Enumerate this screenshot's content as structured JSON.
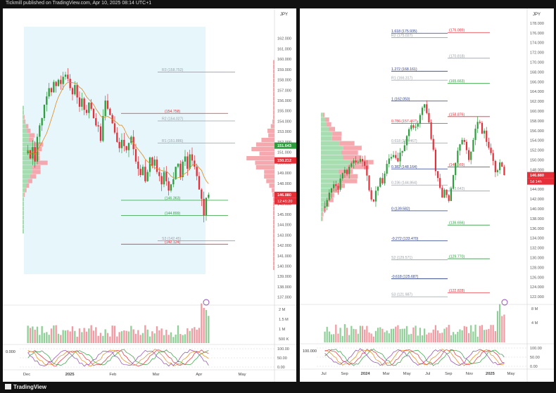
{
  "header": {
    "text": "Tickmill published on TradingView.com, Apr 10, 2025 08:14 UTC+1"
  },
  "footer": {
    "brand": "TradingView"
  },
  "colors": {
    "bull": "#2e9e3f",
    "bear": "#e5303a",
    "accent": "#8e44ad",
    "fib": "#2c3e91",
    "fill": "#e6f6fb"
  },
  "chart_data": [
    {
      "type": "candlestick",
      "currency": "JPY",
      "ylim": [
        136.5,
        163
      ],
      "y_ticks": [
        "162.000",
        "161.000",
        "160.000",
        "159.000",
        "158.000",
        "157.000",
        "156.000",
        "155.000",
        "154.000",
        "153.000",
        "152.000",
        "151.000",
        "150.000",
        "149.000",
        "148.000",
        "147.000",
        "146.000",
        "145.000",
        "144.000",
        "143.000",
        "142.000",
        "141.000",
        "140.000",
        "139.000",
        "138.000",
        "137.000"
      ],
      "x_ticks": [
        "Dec",
        "2025",
        "Feb",
        "Mar",
        "Apr",
        "May"
      ],
      "price_tags": {
        "green": "151.643",
        "red": "150.212",
        "last": "146.880",
        "countdown": "12:45:20"
      },
      "levels": [
        {
          "label": "R3 (158.752)",
          "value": 158.75,
          "color": "#9aa0a6"
        },
        {
          "label": "(154.758)",
          "value": 154.76,
          "color": "#e5303a"
        },
        {
          "label": "R2 (154.027)",
          "value": 154.03,
          "color": "#9aa0a6"
        },
        {
          "label": "R1 (151.886)",
          "value": 151.89,
          "color": "#9aa0a6"
        },
        {
          "label": "(146.363)",
          "value": 146.36,
          "color": "#2e9e3f"
        },
        {
          "label": "(144.899)",
          "value": 144.9,
          "color": "#2e9e3f"
        },
        {
          "label": "S3 (142.45)",
          "value": 142.45,
          "color": "#9aa0a6"
        },
        {
          "label": "(142.124)",
          "value": 142.12,
          "color": "#e5303a"
        }
      ],
      "volume_ticks": [
        "2 M",
        "1.5 M",
        "1 M",
        "500 K"
      ],
      "osc_ticks": [
        "100.00",
        "50.00",
        "0.00"
      ],
      "osc_left_label": "0.000",
      "closes": [
        151.2,
        150.4,
        151.5,
        150.1,
        152.5,
        153.6,
        154.3,
        155.6,
        156.4,
        157.2,
        156.8,
        157.8,
        157.4,
        158.0,
        157.6,
        158.3,
        158.5,
        158.1,
        157.2,
        156.6,
        157.5,
        156.3,
        155.4,
        156.2,
        155.1,
        154.8,
        155.8,
        155.2,
        154.3,
        153.6,
        153.5,
        152.1,
        154.5,
        156.0,
        155.2,
        154.6,
        153.8,
        152.9,
        152.0,
        151.4,
        152.2,
        151.6,
        151.2,
        151.9,
        152.5,
        151.3,
        150.1,
        149.4,
        148.8,
        149.6,
        148.2,
        149.1,
        150.5,
        149.7,
        150.3,
        149.1,
        148.7,
        147.9,
        149.1,
        148.2,
        147.3,
        147.9,
        148.4,
        149.6,
        149.9,
        148.6,
        150.1,
        150.6,
        149.4,
        150.8,
        150.2,
        149.6,
        148.7,
        147.4,
        146.5,
        144.9,
        146.6,
        146.9
      ]
    },
    {
      "type": "candlestick",
      "currency": "JPY",
      "ylim": [
        121,
        179
      ],
      "y_ticks": [
        "178.000",
        "176.000",
        "174.000",
        "172.000",
        "170.000",
        "168.000",
        "166.000",
        "164.000",
        "162.000",
        "160.000",
        "158.000",
        "156.000",
        "154.000",
        "152.000",
        "150.000",
        "148.000",
        "146.000",
        "144.000",
        "142.000",
        "140.000",
        "138.000",
        "136.000",
        "134.000",
        "132.000",
        "130.000",
        "128.000",
        "126.000",
        "124.000",
        "122.000"
      ],
      "x_ticks": [
        "Jul",
        "Sep",
        "2024",
        "Mar",
        "May",
        "Jul",
        "Sep",
        "Nov",
        "2025",
        "May"
      ],
      "price_tags": {
        "last": "146.880",
        "countdown": "1d 14h"
      },
      "levels": [
        {
          "label": "1.618 (175.935)",
          "value": 175.94,
          "color": "#2c3e91"
        },
        {
          "label": "(176.089)",
          "value": 176.09,
          "color": "#e5303a"
        },
        {
          "label": "R2 (175.027)",
          "value": 175.03,
          "color": "#9aa0a6"
        },
        {
          "label": "(170.818)",
          "value": 170.82,
          "color": "#9aa0a6"
        },
        {
          "label": "1.272 (168.161)",
          "value": 168.16,
          "color": "#2c3e91"
        },
        {
          "label": "R1 (166.317)",
          "value": 166.32,
          "color": "#9aa0a6"
        },
        {
          "label": "(165.663)",
          "value": 165.66,
          "color": "#2e9e3f"
        },
        {
          "label": "1 (162.050)",
          "value": 162.05,
          "color": "#2c3e91"
        },
        {
          "label": "(158.876)",
          "value": 158.88,
          "color": "#e5303a"
        },
        {
          "label": "0.786 (157.467)",
          "value": 157.47,
          "color": "#e5303a"
        },
        {
          "label": "0.618 (153.467)",
          "value": 153.47,
          "color": "#9aa0a6"
        },
        {
          "label": "0.382 (148.164)",
          "value": 148.16,
          "color": "#2c3e91"
        },
        {
          "label": "(148.569)",
          "value": 148.57,
          "color": "#e5303a"
        },
        {
          "label": "0.236 (144.864)",
          "value": 144.86,
          "color": "#9aa0a6"
        },
        {
          "label": "(143.642)",
          "value": 143.64,
          "color": "#9aa0a6"
        },
        {
          "label": "0 (139.582)",
          "value": 139.58,
          "color": "#2c3e91"
        },
        {
          "label": "(136.656)",
          "value": 136.66,
          "color": "#2e9e3f"
        },
        {
          "label": "-0.272 (133.470)",
          "value": 133.47,
          "color": "#2c3e91"
        },
        {
          "label": "S2 (129.571)",
          "value": 129.57,
          "color": "#9aa0a6"
        },
        {
          "label": "(129.770)",
          "value": 129.77,
          "color": "#2e9e3f"
        },
        {
          "label": "-0.618 (125.687)",
          "value": 125.69,
          "color": "#2c3e91"
        },
        {
          "label": "(122.828)",
          "value": 122.83,
          "color": "#e5303a"
        },
        {
          "label": "S3 (121.987)",
          "value": 121.99,
          "color": "#9aa0a6"
        }
      ],
      "volume_ticks": [
        "8 M",
        "4 M"
      ],
      "osc_ticks": [
        "100.00",
        "50.00",
        "0.00"
      ],
      "osc_left_label": "100.000",
      "closes": [
        140.5,
        141.8,
        143.3,
        144.2,
        145.0,
        144.7,
        143.9,
        146.2,
        147.3,
        148.0,
        147.1,
        148.6,
        149.3,
        149.9,
        149.5,
        149.6,
        150.2,
        149.7,
        148.8,
        146.8,
        143.8,
        141.9,
        141.5,
        143.7,
        144.5,
        146.3,
        145.2,
        147.2,
        149.2,
        150.3,
        150.6,
        151.0,
        150.4,
        149.7,
        151.5,
        151.8,
        153.0,
        154.9,
        156.3,
        157.1,
        156.6,
        156.8,
        157.4,
        159.2,
        160.7,
        161.4,
        159.6,
        157.7,
        154.3,
        152.1,
        147.7,
        146.3,
        144.3,
        142.3,
        143.9,
        142.8,
        141.6,
        144.2,
        146.9,
        149.4,
        151.9,
        153.2,
        154.1,
        153.7,
        152.0,
        150.0,
        151.7,
        154.1,
        156.4,
        157.8,
        157.6,
        155.4,
        156.0,
        153.7,
        152.5,
        151.4,
        149.8,
        147.5,
        147.9,
        149.5,
        148.6,
        146.9
      ]
    }
  ]
}
